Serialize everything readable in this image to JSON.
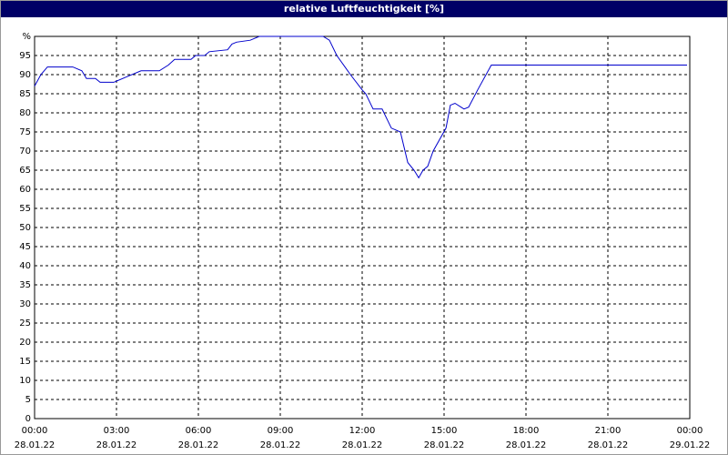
{
  "chart_data": {
    "type": "line",
    "title": "relative Luftfeuchtigkeit [%]",
    "xlim": [
      0,
      24
    ],
    "ylim": [
      0,
      100
    ],
    "xticks": [
      {
        "value": 0,
        "label": "00:00",
        "date": "28.01.22"
      },
      {
        "value": 3,
        "label": "03:00",
        "date": "28.01.22"
      },
      {
        "value": 6,
        "label": "06:00",
        "date": "28.01.22"
      },
      {
        "value": 9,
        "label": "09:00",
        "date": "28.01.22"
      },
      {
        "value": 12,
        "label": "12:00",
        "date": "28.01.22"
      },
      {
        "value": 15,
        "label": "15:00",
        "date": "28.01.22"
      },
      {
        "value": 18,
        "label": "18:00",
        "date": "28.01.22"
      },
      {
        "value": 21,
        "label": "21:00",
        "date": "28.01.22"
      },
      {
        "value": 24,
        "label": "00:00",
        "date": "29.01.22"
      }
    ],
    "yticks": [
      0,
      5,
      10,
      15,
      20,
      25,
      30,
      35,
      40,
      45,
      50,
      55,
      60,
      65,
      70,
      75,
      80,
      85,
      90,
      95,
      {
        "value": 100,
        "label": "%"
      }
    ],
    "grid": true,
    "series": [
      {
        "color": "#0000cc",
        "x": [
          0,
          0.23,
          0.47,
          1.4,
          1.73,
          1.9,
          2.23,
          2.4,
          2.9,
          3.4,
          3.9,
          4.57,
          4.9,
          5.13,
          5.73,
          5.9,
          6.23,
          6.4,
          7.07,
          7.23,
          7.4,
          7.9,
          8.23,
          10.57,
          10.8,
          11.07,
          11.57,
          12,
          12.13,
          12.4,
          12.73,
          13.07,
          13.4,
          13.67,
          13.9,
          14.07,
          14.23,
          14.4,
          14.6,
          15.07,
          15.23,
          15.4,
          15.73,
          15.9,
          16.23,
          16.73,
          23.9
        ],
        "values": [
          87,
          90,
          92,
          92,
          91,
          89,
          89,
          88,
          88,
          89.5,
          91,
          91,
          92.5,
          94,
          94,
          95,
          95,
          96,
          96.5,
          98,
          98.5,
          99,
          100,
          100,
          99,
          95,
          90,
          86,
          85,
          81,
          81,
          76,
          75,
          67,
          65,
          63,
          65,
          66,
          70,
          76,
          82,
          82.5,
          81,
          81.5,
          86,
          92.5,
          92.5
        ]
      }
    ]
  }
}
